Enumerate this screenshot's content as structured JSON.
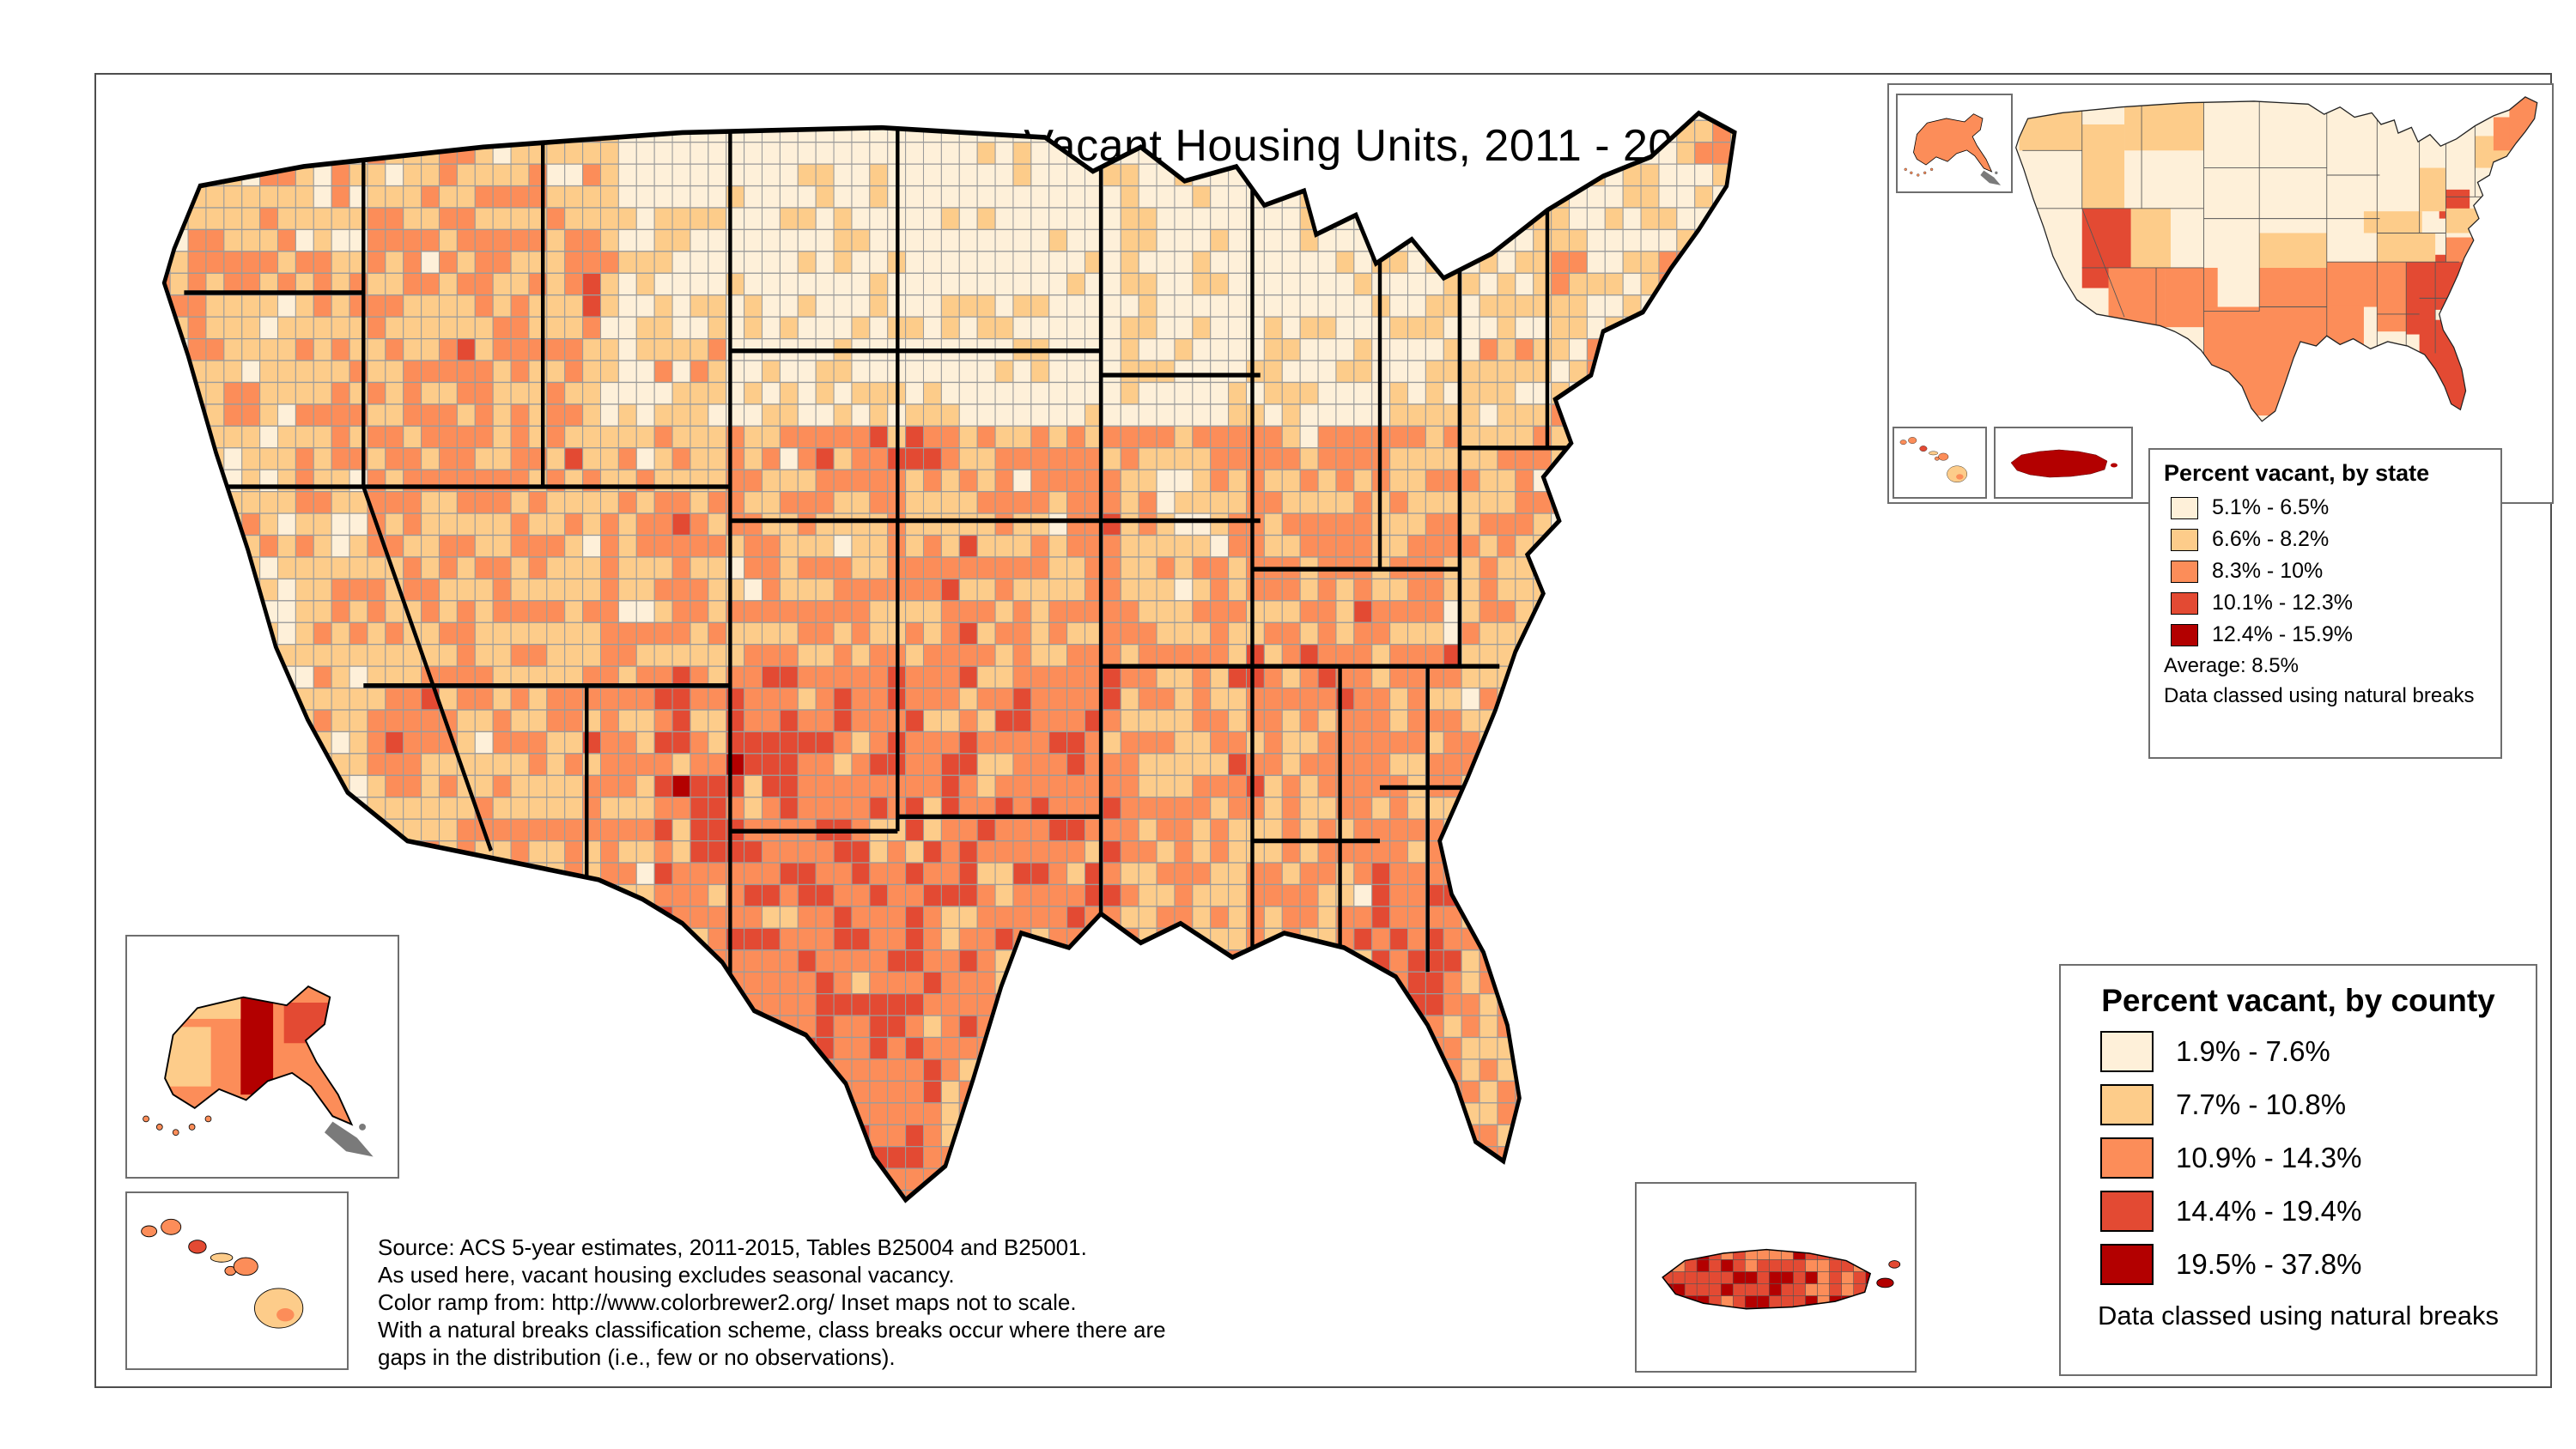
{
  "title": "Vacant Housing Units, 2011 - 2015",
  "colors": {
    "classes": [
      "#fef0d9",
      "#fdcc8a",
      "#fc8d59",
      "#e34a33",
      "#b30000"
    ],
    "county_border": "#9b9b9b",
    "state_border": "#000000",
    "frame_border": "#4d4d4d",
    "canada_gray": "#7a7a7a"
  },
  "state_legend": {
    "title": "Percent vacant, by state",
    "classes": [
      {
        "label": "5.1% - 6.5%",
        "color": "#fef0d9"
      },
      {
        "label": "6.6% - 8.2%",
        "color": "#fdcc8a"
      },
      {
        "label": "8.3% - 10%",
        "color": "#fc8d59"
      },
      {
        "label": "10.1% - 12.3%",
        "color": "#e34a33"
      },
      {
        "label": "12.4% - 15.9%",
        "color": "#b30000"
      }
    ],
    "average_note": "Average: 8.5%",
    "method_note": "Data classed using natural breaks"
  },
  "county_legend": {
    "title": "Percent vacant, by county",
    "classes": [
      {
        "label": "1.9% - 7.6%",
        "color": "#fef0d9"
      },
      {
        "label": "7.7% - 10.8%",
        "color": "#fdcc8a"
      },
      {
        "label": "10.9% - 14.3%",
        "color": "#fc8d59"
      },
      {
        "label": "14.4% - 19.4%",
        "color": "#e34a33"
      },
      {
        "label": "19.5% - 37.8%",
        "color": "#b30000"
      }
    ],
    "method_note": "Data classed using natural breaks"
  },
  "source_note": {
    "lines": [
      "Source: ACS 5-year estimates, 2011-2015, Tables B25004 and B25001.",
      "As used here, vacant housing excludes seasonal vacancy.",
      "Color ramp from: http://www.colorbrewer2.org/  Inset maps not to scale.",
      "With a natural breaks classification scheme, class breaks occur where there are",
      "gaps in the distribution (i.e., few or no observations)."
    ]
  }
}
